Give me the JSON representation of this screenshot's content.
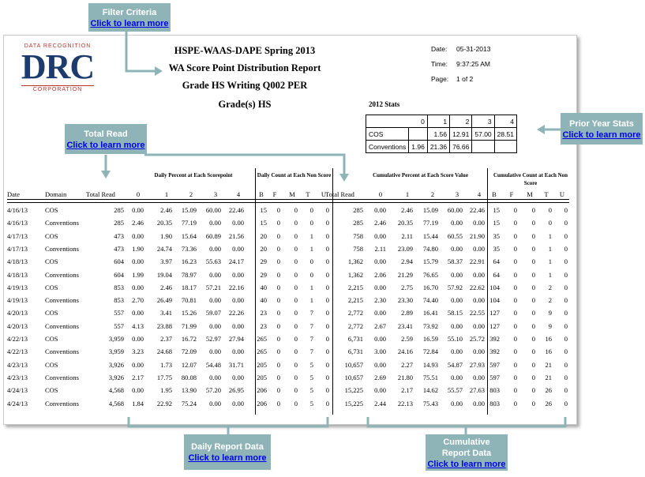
{
  "logo": {
    "top": "DATA RECOGNITION",
    "big": "DRC",
    "bottom": "CORPORATION"
  },
  "titles": [
    "HSPE-WAAS-DAPE Spring 2013",
    "WA Score Point Distribution Report",
    "Grade HS Writing Q002 PER",
    "Grade(s) HS"
  ],
  "meta": {
    "date_label": "Date:",
    "date": "05-31-2013",
    "time_label": "Time:",
    "time": "9:37:25 AM",
    "page_label": "Page:",
    "page": "1 of 2"
  },
  "prior_stats": {
    "title": "2012 Stats",
    "headers": [
      "0",
      "1",
      "2",
      "3",
      "4"
    ],
    "rows": [
      {
        "label": "COS",
        "values": [
          "",
          "1.56",
          "12.91",
          "57.00",
          "28.51"
        ]
      },
      {
        "label": "Conventions",
        "values": [
          "1.96",
          "21.36",
          "76.66",
          "",
          ""
        ]
      }
    ]
  },
  "group_headers": {
    "daily_percent": "Daily Percent at Each Scorepoint",
    "daily_count": "Daily Count at Each Non Score",
    "cum_percent": "Cumulative Percent at Each Score Value",
    "cum_count": "Cumulative Count at Each Non Score"
  },
  "columns": [
    "Date",
    "Domain",
    "Total Read",
    "0",
    "1",
    "2",
    "3",
    "4",
    "B",
    "F",
    "M",
    "T",
    "U",
    "Total Read",
    "0",
    "1",
    "2",
    "3",
    "4",
    "B",
    "F",
    "M",
    "T",
    "U"
  ],
  "rows": [
    [
      "4/16/13",
      "COS",
      "285",
      "0.00",
      "2.46",
      "15.09",
      "60.00",
      "22.46",
      "15",
      "0",
      "0",
      "0",
      "0",
      "285",
      "0.00",
      "2.46",
      "15.09",
      "60.00",
      "22.46",
      "15",
      "0",
      "0",
      "0",
      "0"
    ],
    [
      "4/16/13",
      "Conventions",
      "285",
      "2.46",
      "20.35",
      "77.19",
      "0.00",
      "0.00",
      "15",
      "0",
      "0",
      "0",
      "0",
      "285",
      "2.46",
      "20.35",
      "77.19",
      "0.00",
      "0.00",
      "15",
      "0",
      "0",
      "0",
      "0"
    ],
    [
      "4/17/13",
      "COS",
      "473",
      "0.00",
      "1.90",
      "15.64",
      "60.89",
      "21.56",
      "20",
      "0",
      "0",
      "1",
      "0",
      "758",
      "0.00",
      "2.11",
      "15.44",
      "60.55",
      "21.90",
      "35",
      "0",
      "0",
      "1",
      "0"
    ],
    [
      "4/17/13",
      "Conventions",
      "473",
      "1.90",
      "24.74",
      "73.36",
      "0.00",
      "0.00",
      "20",
      "0",
      "0",
      "1",
      "0",
      "758",
      "2.11",
      "23.09",
      "74.80",
      "0.00",
      "0.00",
      "35",
      "0",
      "0",
      "1",
      "0"
    ],
    [
      "4/18/13",
      "COS",
      "604",
      "0.00",
      "3.97",
      "16.23",
      "55.63",
      "24.17",
      "29",
      "0",
      "0",
      "0",
      "0",
      "1,362",
      "0.00",
      "2.94",
      "15.79",
      "58.37",
      "22.91",
      "64",
      "0",
      "0",
      "1",
      "0"
    ],
    [
      "4/18/13",
      "Conventions",
      "604",
      "1.99",
      "19.04",
      "78.97",
      "0.00",
      "0.00",
      "29",
      "0",
      "0",
      "0",
      "0",
      "1,362",
      "2.06",
      "21.29",
      "76.65",
      "0.00",
      "0.00",
      "64",
      "0",
      "0",
      "1",
      "0"
    ],
    [
      "4/19/13",
      "COS",
      "853",
      "0.00",
      "2.46",
      "18.17",
      "57.21",
      "22.16",
      "40",
      "0",
      "0",
      "1",
      "0",
      "2,215",
      "0.00",
      "2.75",
      "16.70",
      "57.92",
      "22.62",
      "104",
      "0",
      "0",
      "2",
      "0"
    ],
    [
      "4/19/13",
      "Conventions",
      "853",
      "2.70",
      "26.49",
      "70.81",
      "0.00",
      "0.00",
      "40",
      "0",
      "0",
      "1",
      "0",
      "2,215",
      "2.30",
      "23.30",
      "74.40",
      "0.00",
      "0.00",
      "104",
      "0",
      "0",
      "2",
      "0"
    ],
    [
      "4/20/13",
      "COS",
      "557",
      "0.00",
      "3.41",
      "15.26",
      "59.07",
      "22.26",
      "23",
      "0",
      "0",
      "7",
      "0",
      "2,772",
      "0.00",
      "2.89",
      "16.41",
      "58.15",
      "22.55",
      "127",
      "0",
      "0",
      "9",
      "0"
    ],
    [
      "4/20/13",
      "Conventions",
      "557",
      "4.13",
      "23.88",
      "71.99",
      "0.00",
      "0.00",
      "23",
      "0",
      "0",
      "7",
      "0",
      "2,772",
      "2.67",
      "23.41",
      "73.92",
      "0.00",
      "0.00",
      "127",
      "0",
      "0",
      "9",
      "0"
    ],
    [
      "4/22/13",
      "COS",
      "3,959",
      "0.00",
      "2.37",
      "16.72",
      "52.97",
      "27.94",
      "265",
      "0",
      "0",
      "7",
      "0",
      "6,731",
      "0.00",
      "2.59",
      "16.59",
      "55.10",
      "25.72",
      "392",
      "0",
      "0",
      "16",
      "0"
    ],
    [
      "4/22/13",
      "Conventions",
      "3,959",
      "3.23",
      "24.68",
      "72.09",
      "0.00",
      "0.00",
      "265",
      "0",
      "0",
      "7",
      "0",
      "6,731",
      "3.00",
      "24.16",
      "72.84",
      "0.00",
      "0.00",
      "392",
      "0",
      "0",
      "16",
      "0"
    ],
    [
      "4/23/13",
      "COS",
      "3,926",
      "0.00",
      "1.73",
      "12.07",
      "54.48",
      "31.71",
      "205",
      "0",
      "0",
      "5",
      "0",
      "10,657",
      "0.00",
      "2.27",
      "14.93",
      "54.87",
      "27.93",
      "597",
      "0",
      "0",
      "21",
      "0"
    ],
    [
      "4/23/13",
      "Conventions",
      "3,926",
      "2.17",
      "17.75",
      "80.08",
      "0.00",
      "0.00",
      "205",
      "0",
      "0",
      "5",
      "0",
      "10,657",
      "2.69",
      "21.80",
      "75.51",
      "0.00",
      "0.00",
      "597",
      "0",
      "0",
      "21",
      "0"
    ],
    [
      "4/24/13",
      "COS",
      "4,568",
      "0.00",
      "1.95",
      "13.90",
      "57.20",
      "26.95",
      "206",
      "0",
      "0",
      "5",
      "0",
      "15,225",
      "0.00",
      "2.17",
      "14.62",
      "55.57",
      "27.63",
      "803",
      "0",
      "0",
      "26",
      "0"
    ],
    [
      "4/24/13",
      "Conventions",
      "4,568",
      "1.84",
      "22.92",
      "75.24",
      "0.00",
      "0.00",
      "206",
      "0",
      "0",
      "5",
      "0",
      "15,225",
      "2.44",
      "22.13",
      "75.43",
      "0.00",
      "0.00",
      "803",
      "0",
      "0",
      "26",
      "0"
    ]
  ],
  "callouts": {
    "filter": {
      "title": "Filter Criteria",
      "link": "Click to learn more"
    },
    "total": {
      "title": "Total Read",
      "link": "Click to learn more"
    },
    "prior": {
      "title": "Prior Year Stats",
      "link": "Click to learn more"
    },
    "daily": {
      "title": "Daily Report Data",
      "link": "Click to learn more"
    },
    "cum": {
      "title_1": "Cumulative",
      "title_2": "Report Data",
      "link": "Click to learn more"
    }
  },
  "colors": {
    "callout": "#8fb4b8",
    "link": "#0000ee",
    "logo_blue": "#1d3b6c",
    "logo_red": "#b8342c"
  }
}
